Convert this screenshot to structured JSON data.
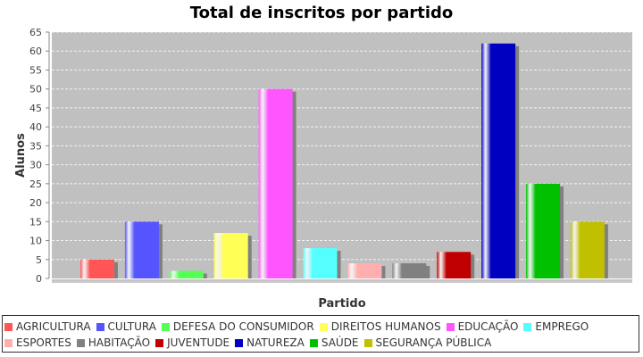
{
  "chart_data": {
    "type": "bar",
    "title": "Total de inscritos por partido",
    "xlabel": "Partido",
    "ylabel": "Alunos",
    "ylim": [
      0,
      65
    ],
    "yticks": [
      0,
      5,
      10,
      15,
      20,
      25,
      30,
      35,
      40,
      45,
      50,
      55,
      60,
      65
    ],
    "grid": true,
    "legend_position": "bottom",
    "series": [
      {
        "name": "AGRICULTURA",
        "value": 5,
        "color": "#ff5555"
      },
      {
        "name": "CULTURA",
        "value": 15,
        "color": "#5555ff"
      },
      {
        "name": "DEFESA DO CONSUMIDOR",
        "value": 2,
        "color": "#55ff55"
      },
      {
        "name": "DIREITOS HUMANOS",
        "value": 12,
        "color": "#ffff55"
      },
      {
        "name": "EDUCAÇÃO",
        "value": 50,
        "color": "#ff55ff"
      },
      {
        "name": "EMPREGO",
        "value": 8,
        "color": "#55ffff"
      },
      {
        "name": "ESPORTES",
        "value": 4,
        "color": "#ffafaf"
      },
      {
        "name": "HABITAÇÃO",
        "value": 4,
        "color": "#808080"
      },
      {
        "name": "JUVENTUDE",
        "value": 7,
        "color": "#c00000"
      },
      {
        "name": "NATUREZA",
        "value": 62,
        "color": "#0000c0"
      },
      {
        "name": "SAÚDE",
        "value": 25,
        "color": "#00c000"
      },
      {
        "name": "SEGURANÇA PÚBLICA",
        "value": 15,
        "color": "#c0c000"
      }
    ]
  }
}
